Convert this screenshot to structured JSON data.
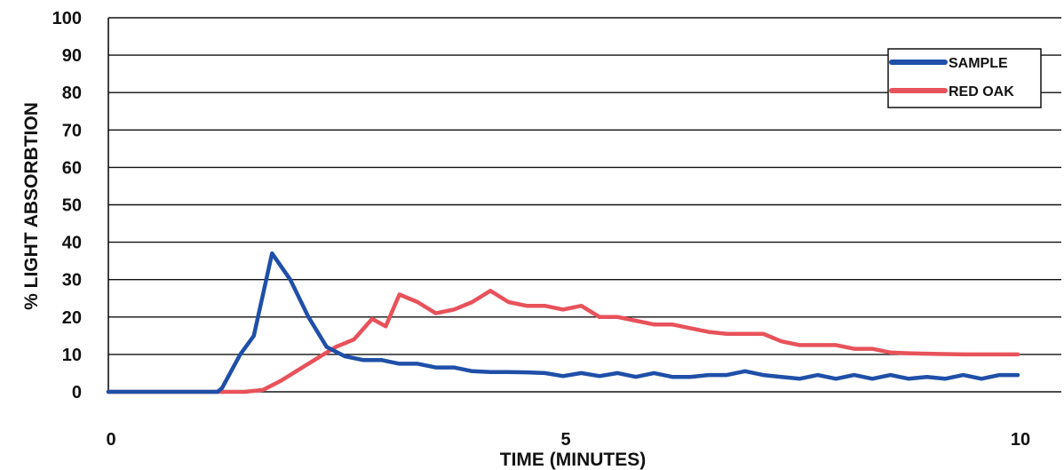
{
  "chart_data": {
    "type": "line",
    "title": "",
    "xlabel": "TIME (MINUTES)",
    "ylabel": "% LIGHT ABSORBTION",
    "xlim": [
      0,
      10
    ],
    "ylim": [
      0,
      100
    ],
    "x_ticks": [
      "0",
      "5",
      "10"
    ],
    "y_ticks": [
      "0",
      "10",
      "20",
      "30",
      "40",
      "50",
      "60",
      "70",
      "80",
      "90",
      "100"
    ],
    "grid": true,
    "legend_position": "top-right",
    "series": [
      {
        "name": "SAMPLE",
        "color": "#1f4fa8",
        "points": [
          [
            0.0,
            0
          ],
          [
            1.0,
            0
          ],
          [
            1.2,
            0
          ],
          [
            1.25,
            1
          ],
          [
            1.45,
            10
          ],
          [
            1.6,
            15
          ],
          [
            1.8,
            37
          ],
          [
            2.0,
            30
          ],
          [
            2.2,
            20
          ],
          [
            2.4,
            12
          ],
          [
            2.6,
            9.5
          ],
          [
            2.8,
            8.5
          ],
          [
            3.0,
            8.5
          ],
          [
            3.2,
            7.5
          ],
          [
            3.4,
            7.5
          ],
          [
            3.6,
            6.5
          ],
          [
            3.8,
            6.5
          ],
          [
            4.0,
            5.5
          ],
          [
            4.2,
            5.3
          ],
          [
            4.4,
            5.3
          ],
          [
            4.6,
            5.2
          ],
          [
            4.8,
            5.0
          ],
          [
            5.0,
            4.2
          ],
          [
            5.2,
            5.0
          ],
          [
            5.4,
            4.2
          ],
          [
            5.6,
            5.0
          ],
          [
            5.8,
            4.0
          ],
          [
            6.0,
            5.0
          ],
          [
            6.2,
            4.0
          ],
          [
            6.4,
            4.0
          ],
          [
            6.6,
            4.5
          ],
          [
            6.8,
            4.5
          ],
          [
            7.0,
            5.5
          ],
          [
            7.2,
            4.5
          ],
          [
            7.4,
            4.0
          ],
          [
            7.6,
            3.5
          ],
          [
            7.8,
            4.5
          ],
          [
            8.0,
            3.5
          ],
          [
            8.2,
            4.5
          ],
          [
            8.4,
            3.5
          ],
          [
            8.6,
            4.5
          ],
          [
            8.8,
            3.5
          ],
          [
            9.0,
            4.0
          ],
          [
            9.2,
            3.5
          ],
          [
            9.4,
            4.5
          ],
          [
            9.6,
            3.5
          ],
          [
            9.8,
            4.5
          ],
          [
            10.0,
            4.5
          ]
        ]
      },
      {
        "name": "RED OAK",
        "color": "#e8525a",
        "points": [
          [
            0.0,
            0
          ],
          [
            1.5,
            0
          ],
          [
            1.7,
            0.5
          ],
          [
            1.9,
            3
          ],
          [
            2.1,
            6
          ],
          [
            2.3,
            9
          ],
          [
            2.5,
            12
          ],
          [
            2.7,
            14
          ],
          [
            2.9,
            19.5
          ],
          [
            3.05,
            17.5
          ],
          [
            3.2,
            26
          ],
          [
            3.4,
            24
          ],
          [
            3.6,
            21
          ],
          [
            3.8,
            22
          ],
          [
            4.0,
            24
          ],
          [
            4.2,
            27
          ],
          [
            4.4,
            24
          ],
          [
            4.6,
            23
          ],
          [
            4.8,
            23
          ],
          [
            5.0,
            22
          ],
          [
            5.2,
            23
          ],
          [
            5.4,
            20
          ],
          [
            5.6,
            20
          ],
          [
            5.8,
            19
          ],
          [
            6.0,
            18
          ],
          [
            6.2,
            18
          ],
          [
            6.4,
            17
          ],
          [
            6.6,
            16
          ],
          [
            6.8,
            15.5
          ],
          [
            7.0,
            15.5
          ],
          [
            7.2,
            15.5
          ],
          [
            7.4,
            13.5
          ],
          [
            7.6,
            12.5
          ],
          [
            7.8,
            12.5
          ],
          [
            8.0,
            12.5
          ],
          [
            8.2,
            11.5
          ],
          [
            8.4,
            11.5
          ],
          [
            8.6,
            10.5
          ],
          [
            8.8,
            10.3
          ],
          [
            9.0,
            10.2
          ],
          [
            9.2,
            10.1
          ],
          [
            9.4,
            10.0
          ],
          [
            9.6,
            10.0
          ],
          [
            9.8,
            10.0
          ],
          [
            10.0,
            10.0
          ]
        ]
      }
    ]
  }
}
